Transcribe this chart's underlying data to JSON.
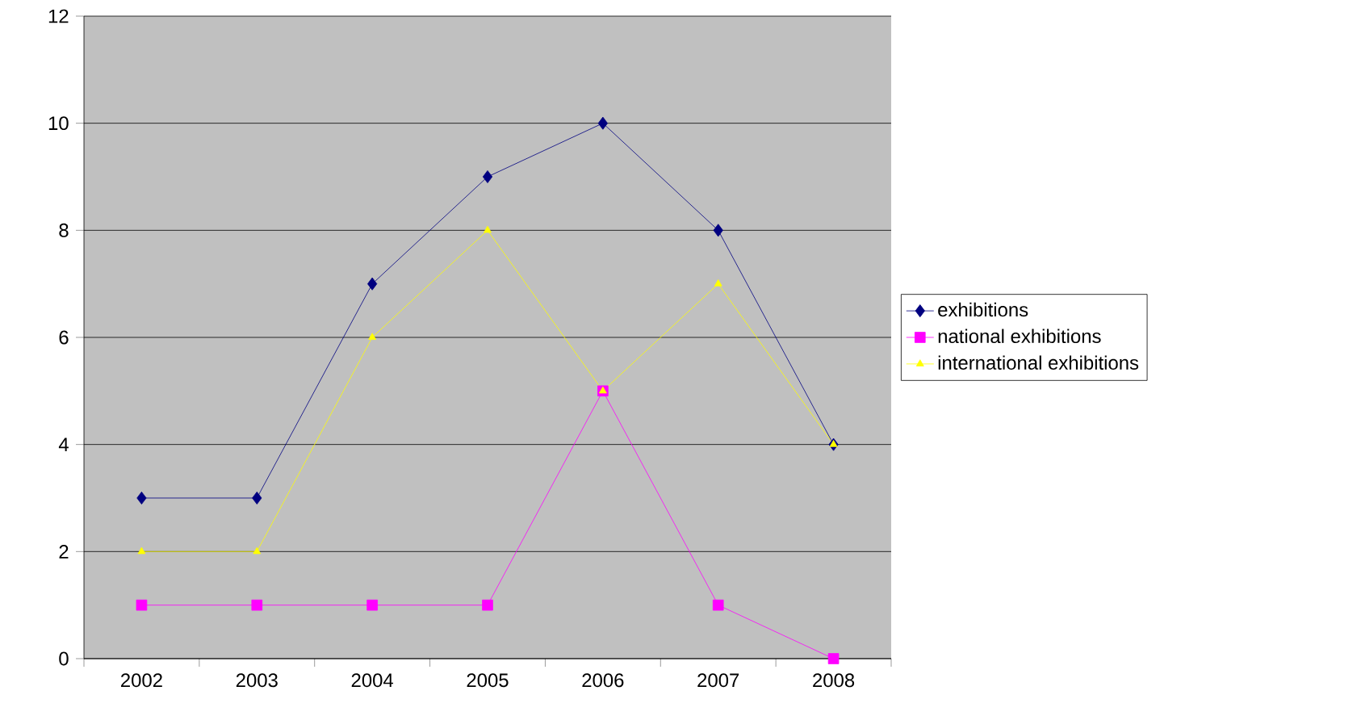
{
  "chart_data": {
    "type": "line",
    "categories": [
      "2002",
      "2003",
      "2004",
      "2005",
      "2006",
      "2007",
      "2008"
    ],
    "series": [
      {
        "name": "exhibitions",
        "color": "#000080",
        "marker": "diamond",
        "values": [
          3,
          3,
          7,
          9,
          10,
          8,
          4
        ]
      },
      {
        "name": "national exhibitions",
        "color": "#ff00ff",
        "marker": "square",
        "values": [
          1,
          1,
          1,
          1,
          5,
          1,
          0
        ]
      },
      {
        "name": "international exhibitions",
        "color": "#ffff00",
        "marker": "triangle",
        "values": [
          2,
          2,
          6,
          8,
          5,
          7,
          4
        ]
      }
    ],
    "ylim": [
      0,
      12
    ],
    "yticks": [
      0,
      2,
      4,
      6,
      8,
      10,
      12
    ],
    "grid": "y",
    "legend": "right",
    "line_style": "solid"
  }
}
